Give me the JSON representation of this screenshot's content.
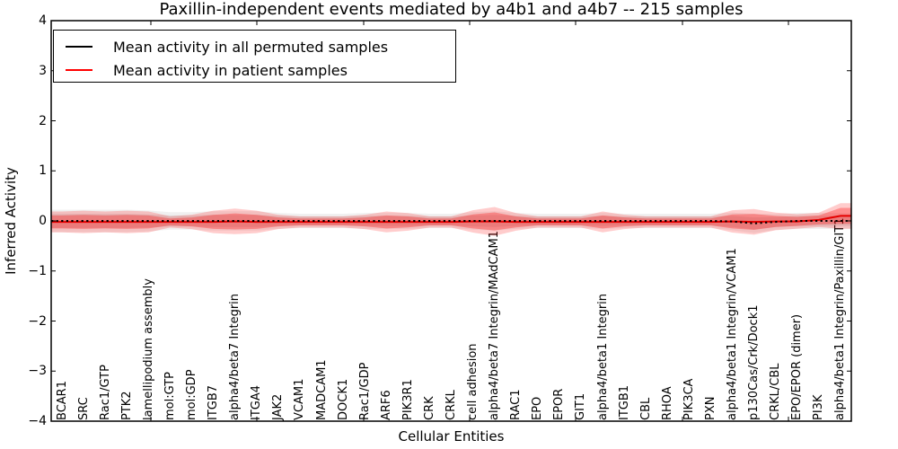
{
  "chart_data": {
    "type": "line",
    "title": "Paxillin-independent events mediated by a4b1 and a4b7 -- 215 samples",
    "xlabel": "Cellular Entities",
    "ylabel": "Inferred Activity",
    "ylim": [
      -4,
      4
    ],
    "ytick_labels": [
      "4",
      "3",
      "2",
      "1",
      "0",
      "−1",
      "−2",
      "−3",
      "−4"
    ],
    "sample_count_note": "215 samples",
    "legend_position": "upper left",
    "grid": false,
    "categories": [
      "BCAR1",
      "SRC",
      "Rac1/GTP",
      "PTK2",
      "lamellipodium assembly",
      "mol:GTP",
      "mol:GDP",
      "ITGB7",
      "alpha4/beta7 Integrin",
      "ITGA4",
      "JAK2",
      "VCAM1",
      "MADCAM1",
      "DOCK1",
      "Rac1/GDP",
      "ARF6",
      "PIK3R1",
      "CRK",
      "CRKL",
      "cell adhesion",
      "alpha4/beta7 Integrin/MAdCAM1",
      "RAC1",
      "EPO",
      "EPOR",
      "GIT1",
      "alpha4/beta1 Integrin",
      "ITGB1",
      "CBL",
      "RHOA",
      "PIK3CA",
      "PXN",
      "alpha4/beta1 Integrin/VCAM1",
      "p130Cas/Crk/Dock1",
      "CRKL/CBL",
      "EPO/EPOR (dimer)",
      "PI3K",
      "alpha4/beta1 Integrin/Paxillin/GIT1"
    ],
    "series": [
      {
        "name": "Mean activity in all permuted samples",
        "color": "#000000",
        "style": "dashed",
        "values": [
          0,
          0,
          0,
          0,
          0,
          0,
          0,
          0,
          0,
          0,
          0,
          0,
          0,
          0,
          0,
          0,
          0,
          0,
          0,
          0,
          0,
          0,
          0,
          0,
          0,
          0,
          0,
          0,
          0,
          0,
          0,
          -0.01,
          -0.05,
          -0.02,
          0,
          0,
          0
        ]
      },
      {
        "name": "Mean activity in patient samples",
        "color": "#ff0000",
        "style": "solid",
        "values": [
          -0.02,
          -0.02,
          -0.02,
          -0.02,
          -0.02,
          -0.02,
          -0.02,
          -0.02,
          -0.01,
          -0.02,
          -0.02,
          -0.02,
          -0.02,
          -0.02,
          -0.02,
          -0.02,
          -0.02,
          -0.02,
          -0.02,
          -0.01,
          -0.01,
          -0.02,
          -0.02,
          -0.02,
          -0.02,
          -0.02,
          -0.02,
          -0.02,
          -0.02,
          -0.02,
          -0.02,
          -0.01,
          -0.02,
          -0.01,
          -0.01,
          0.02,
          0.1
        ]
      }
    ],
    "bands": [
      {
        "for_series": "Mean activity in all permuted samples",
        "color": "#000000",
        "inner_alpha": 0.08,
        "outer_alpha": 0.06,
        "half_widths": [
          0.14,
          0.14,
          0.14,
          0.14,
          0.13,
          0.11,
          0.11,
          0.12,
          0.12,
          0.12,
          0.1,
          0.09,
          0.09,
          0.09,
          0.1,
          0.1,
          0.1,
          0.09,
          0.09,
          0.11,
          0.12,
          0.1,
          0.09,
          0.09,
          0.09,
          0.1,
          0.09,
          0.09,
          0.09,
          0.09,
          0.09,
          0.11,
          0.12,
          0.1,
          0.1,
          0.1,
          0.1
        ]
      },
      {
        "for_series": "Mean activity in patient samples",
        "color": "#ff0000",
        "inner_alpha": 0.3,
        "outer_alpha": 0.2,
        "half_widths": [
          0.13,
          0.14,
          0.13,
          0.14,
          0.13,
          0.07,
          0.09,
          0.14,
          0.16,
          0.14,
          0.09,
          0.07,
          0.07,
          0.07,
          0.09,
          0.13,
          0.11,
          0.07,
          0.07,
          0.14,
          0.18,
          0.11,
          0.07,
          0.07,
          0.07,
          0.13,
          0.09,
          0.07,
          0.07,
          0.07,
          0.07,
          0.14,
          0.16,
          0.11,
          0.09,
          0.09,
          0.16
        ]
      }
    ]
  }
}
